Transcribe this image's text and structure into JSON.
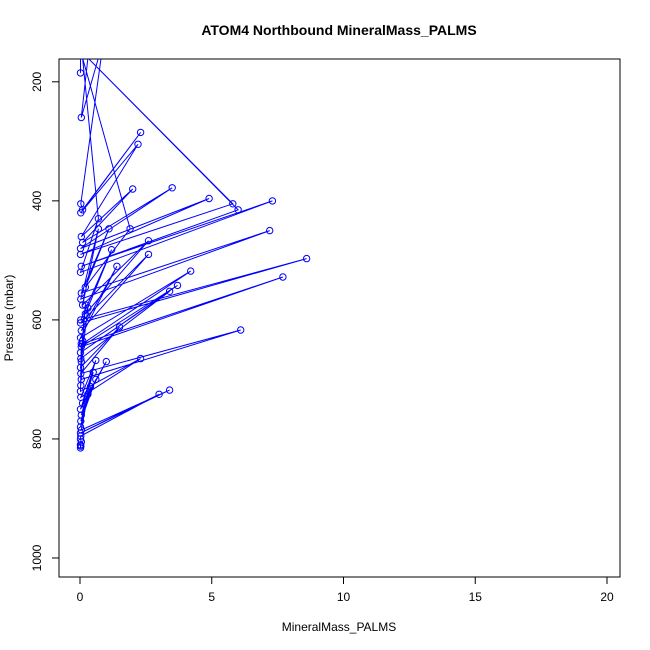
{
  "chart_data": {
    "type": "line",
    "title": "ATOM4 Northbound MineralMass_PALMS",
    "xlabel": "MineralMass_PALMS",
    "ylabel": "Pressure (mbar)",
    "xlim": [
      0,
      20
    ],
    "ylim": [
      1000,
      160
    ],
    "y_reversed": true,
    "grid": false,
    "xticks": [
      0,
      5,
      10,
      15,
      20
    ],
    "xtick_labels": [
      "0",
      "5",
      "10",
      "15",
      "20"
    ],
    "yticks": [
      200,
      400,
      600,
      800,
      1000
    ],
    "ytick_labels": [
      "200",
      "400",
      "600",
      "800",
      "1000"
    ],
    "series": [
      {
        "color": "#0000ff",
        "marker": "open-circle",
        "x": [
          0.02,
          0.02,
          0.3,
          0.05,
          0.7,
          0.8,
          0.03,
          0.1,
          2.3,
          0.03,
          2.2,
          0.05,
          2.0,
          0.1,
          3.5,
          0.02,
          4.9,
          0.02,
          5.8,
          0.3,
          6.0,
          0.05,
          7.3,
          0.02,
          0.7,
          0.1,
          1.9,
          0.2,
          1.1,
          0.05,
          7.2,
          0.03,
          0.7,
          0.1,
          2.6,
          0.2,
          1.2,
          0.03,
          8.6,
          0.02,
          2.6,
          0.05,
          1.4,
          0.02,
          4.2,
          0.1,
          7.7,
          0.05,
          3.7,
          0.02,
          3.4,
          0.03,
          0.2,
          0.05,
          0.3,
          0.02,
          1.5,
          0.03,
          6.1,
          0.05,
          0.1,
          0.03,
          0.05,
          0.02,
          2.3,
          0.03,
          0.6,
          0.1,
          1.0,
          0.02,
          0.5,
          0.05,
          0.6,
          0.03,
          0.4,
          0.02,
          0.3,
          0.05,
          3.4,
          0.02,
          3.0,
          0.03,
          0.02,
          0.05,
          0.02,
          0.03,
          0.02,
          0.02
        ],
        "y": [
          185,
          160,
          160,
          260,
          160,
          160,
          405,
          415,
          285,
          420,
          305,
          460,
          380,
          470,
          378,
          480,
          396,
          490,
          405,
          160,
          415,
          510,
          400,
          520,
          430,
          160,
          447,
          545,
          447,
          555,
          450,
          565,
          447,
          575,
          467,
          590,
          482,
          600,
          497,
          605,
          490,
          618,
          510,
          630,
          518,
          640,
          528,
          645,
          542,
          655,
          552,
          665,
          575,
          670,
          580,
          680,
          612,
          690,
          617,
          700,
          635,
          710,
          640,
          720,
          665,
          730,
          668,
          740,
          670,
          750,
          688,
          760,
          700,
          770,
          712,
          780,
          725,
          785,
          718,
          790,
          725,
          795,
          800,
          805,
          810,
          812,
          815,
          810
        ]
      }
    ]
  }
}
